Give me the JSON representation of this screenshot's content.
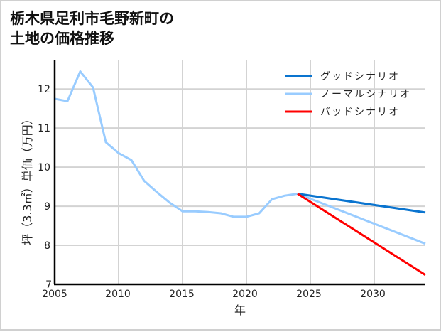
{
  "title": {
    "line1": "栃木県足利市毛野新町の",
    "line2": "土地の価格推移"
  },
  "legend": [
    {
      "label": "グッドシナリオ",
      "color": "#0a74cf"
    },
    {
      "label": "ノーマルシナリオ",
      "color": "#99ccff"
    },
    {
      "label": "バッドシナリオ",
      "color": "#ff0000"
    }
  ],
  "axes": {
    "xlabel": "年",
    "ylabel": "坪（3.3㎡）単価（万円）",
    "xticks": [
      "2005",
      "2010",
      "2015",
      "2020",
      "2025",
      "2030"
    ],
    "yticks": [
      "7",
      "8",
      "9",
      "10",
      "11",
      "12"
    ]
  },
  "chart_data": {
    "type": "line",
    "title": "栃木県足利市毛野新町の土地の価格推移",
    "xlabel": "年",
    "ylabel": "坪（3.3㎡）単価（万円）",
    "xlim": [
      2005,
      2034
    ],
    "ylim": [
      7,
      12.75
    ],
    "grid": true,
    "legend_position": "upper right",
    "series": [
      {
        "name": "ノーマルシナリオ",
        "color": "#99ccff",
        "x": [
          2005,
          2006,
          2007,
          2008,
          2009,
          2010,
          2011,
          2012,
          2013,
          2014,
          2015,
          2016,
          2017,
          2018,
          2019,
          2020,
          2021,
          2022,
          2023,
          2024,
          2034
        ],
        "values": [
          11.75,
          11.69,
          12.45,
          12.04,
          10.64,
          10.36,
          10.18,
          9.65,
          9.36,
          9.09,
          8.87,
          8.87,
          8.85,
          8.82,
          8.73,
          8.73,
          8.82,
          9.18,
          9.27,
          9.32,
          8.04
        ]
      },
      {
        "name": "グッドシナリオ",
        "color": "#0a74cf",
        "x": [
          2024,
          2034
        ],
        "values": [
          9.32,
          8.84
        ]
      },
      {
        "name": "バッドシナリオ",
        "color": "#ff0000",
        "x": [
          2024,
          2034
        ],
        "values": [
          9.32,
          7.24
        ]
      }
    ]
  }
}
